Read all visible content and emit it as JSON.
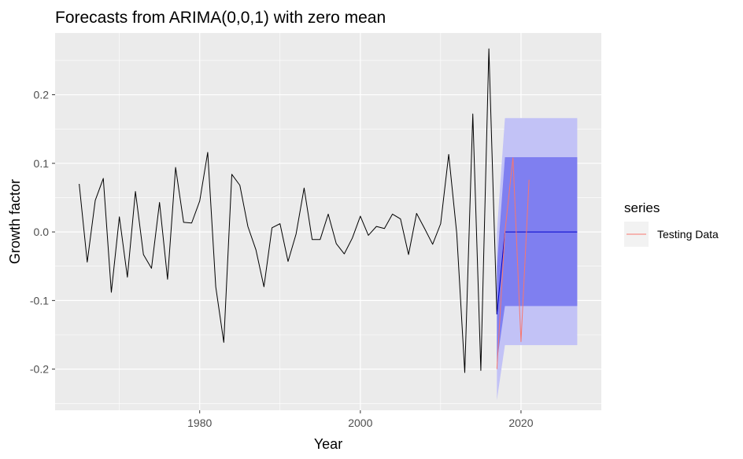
{
  "chart_data": {
    "type": "line",
    "title": "Forecasts from ARIMA(0,0,1) with zero mean",
    "xlabel": "Year",
    "ylabel": "Growth factor",
    "xlim": [
      1962,
      2030
    ],
    "ylim": [
      -0.26,
      0.29
    ],
    "x_ticks": [
      1980,
      2000,
      2020
    ],
    "x_tick_labels": [
      "1980",
      "2000",
      "2020"
    ],
    "y_ticks": [
      -0.2,
      -0.1,
      0.0,
      0.1,
      0.2
    ],
    "y_tick_labels": [
      "-0.2",
      "-0.1",
      "0.0",
      "0.1",
      "0.2"
    ],
    "grid": true,
    "legend": {
      "title": "series",
      "placement": "right",
      "entries": [
        {
          "label": "Testing Data",
          "color": "#f8766d"
        }
      ]
    },
    "colors": {
      "panel_background": "#ebebeb",
      "grid": "#ffffff",
      "history": "#000000",
      "forecast": "#0000cc",
      "band_80": "#7f7ff0",
      "band_95": "#c2c2f6",
      "testing": "#f8766d"
    },
    "series": [
      {
        "role": "history",
        "x": [
          1965,
          1966,
          1967,
          1968,
          1969,
          1970,
          1971,
          1972,
          1973,
          1974,
          1975,
          1976,
          1977,
          1978,
          1979,
          1980,
          1981,
          1982,
          1983,
          1984,
          1985,
          1986,
          1987,
          1988,
          1989,
          1990,
          1991,
          1992,
          1993,
          1994,
          1995,
          1996,
          1997,
          1998,
          1999,
          2000,
          2001,
          2002,
          2003,
          2004,
          2005,
          2006,
          2007,
          2008,
          2009,
          2010,
          2011,
          2012,
          2013,
          2014,
          2015,
          2016,
          2017
        ],
        "y": [
          0.07,
          -0.044,
          0.046,
          0.078,
          -0.088,
          0.022,
          -0.066,
          0.059,
          -0.033,
          -0.053,
          0.043,
          -0.069,
          0.094,
          0.014,
          0.013,
          0.045,
          0.116,
          -0.08,
          -0.161,
          0.084,
          0.068,
          0.008,
          -0.026,
          -0.08,
          0.006,
          0.012,
          -0.043,
          -0.003,
          0.064,
          -0.011,
          -0.011,
          0.026,
          -0.017,
          -0.032,
          -0.009,
          0.023,
          -0.005,
          0.008,
          0.005,
          0.026,
          0.019,
          -0.033,
          0.027,
          0.005,
          -0.018,
          0.012,
          0.113,
          -0.002,
          -0.205,
          0.172,
          -0.202,
          0.267,
          -0.12
        ]
      },
      {
        "role": "forecast_mean",
        "x": [
          2017,
          2018,
          2019,
          2020,
          2021,
          2022,
          2023,
          2024,
          2025,
          2026,
          2027
        ],
        "y": [
          -0.12,
          0.0,
          0.0,
          0.0,
          0.0,
          0.0,
          0.0,
          0.0,
          0.0,
          0.0,
          0.0
        ]
      },
      {
        "name": "Testing Data",
        "role": "testing",
        "x": [
          2017,
          2018,
          2019,
          2020,
          2021
        ],
        "y": [
          -0.2,
          0.0,
          0.108,
          -0.16,
          0.076
        ]
      }
    ],
    "bands": [
      {
        "level": 95,
        "x": [
          2017,
          2018,
          2027
        ],
        "lower": [
          -0.245,
          -0.165,
          -0.165
        ],
        "upper": [
          0.0,
          0.166,
          0.166
        ]
      },
      {
        "level": 80,
        "x": [
          2017,
          2018,
          2027
        ],
        "lower": [
          -0.19,
          -0.108,
          -0.108
        ],
        "upper": [
          -0.05,
          0.109,
          0.109
        ]
      }
    ]
  }
}
